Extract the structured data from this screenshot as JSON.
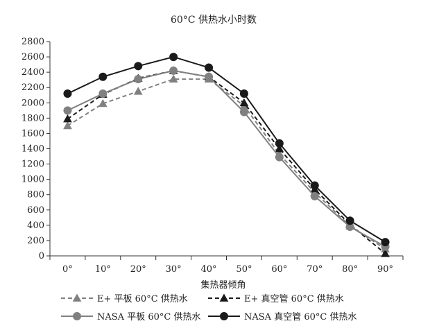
{
  "chart_data": {
    "type": "line",
    "title": "60°C 供热水小时数",
    "xlabel": "集热器倾角",
    "ylabel": "",
    "categories": [
      "0°",
      "10°",
      "20°",
      "30°",
      "40°",
      "50°",
      "60°",
      "70°",
      "80°",
      "90°"
    ],
    "ylim": [
      0,
      2800
    ],
    "yticks": [
      0,
      200,
      400,
      600,
      800,
      1000,
      1200,
      1400,
      1600,
      1800,
      2000,
      2200,
      2400,
      2600,
      2800
    ],
    "grid": false,
    "legend_position": "bottom",
    "series": [
      {
        "name": "E+ 平板 60°C 供热水",
        "values": [
          1700,
          1990,
          2150,
          2310,
          2310,
          1960,
          1330,
          830,
          390,
          90
        ],
        "line": "dashed",
        "marker": "triangle",
        "color": "#808080"
      },
      {
        "name": "E+ 真空管 60°C 供热水",
        "values": [
          1790,
          2110,
          2320,
          2420,
          2340,
          2000,
          1400,
          870,
          410,
          30
        ],
        "line": "dashed",
        "marker": "triangle",
        "color": "#1a1a1a"
      },
      {
        "name": "NASA 平板 60°C 供热水",
        "values": [
          1900,
          2120,
          2310,
          2420,
          2340,
          1880,
          1290,
          780,
          380,
          120
        ],
        "line": "solid",
        "marker": "circle",
        "color": "#808080"
      },
      {
        "name": "NASA 真空管 60°C 供热水",
        "values": [
          2120,
          2340,
          2480,
          2600,
          2460,
          2120,
          1470,
          920,
          460,
          180
        ],
        "line": "solid",
        "marker": "circle",
        "color": "#1a1a1a"
      }
    ]
  }
}
